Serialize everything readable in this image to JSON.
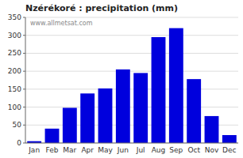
{
  "chart_data": {
    "type": "bar",
    "title": "Nzérékoré : precipitation (mm)",
    "categories": [
      "Jan",
      "Feb",
      "Mar",
      "Apr",
      "May",
      "Jun",
      "Jul",
      "Aug",
      "Sep",
      "Oct",
      "Nov",
      "Dec"
    ],
    "values": [
      5,
      40,
      98,
      138,
      152,
      205,
      195,
      295,
      320,
      178,
      75,
      22
    ],
    "color": "#0000DD",
    "ylim": [
      0,
      350
    ],
    "yticks": [
      0,
      50,
      100,
      150,
      200,
      250,
      300,
      350
    ],
    "grid": true,
    "annotations": [
      "www.allmetsat.com"
    ]
  }
}
